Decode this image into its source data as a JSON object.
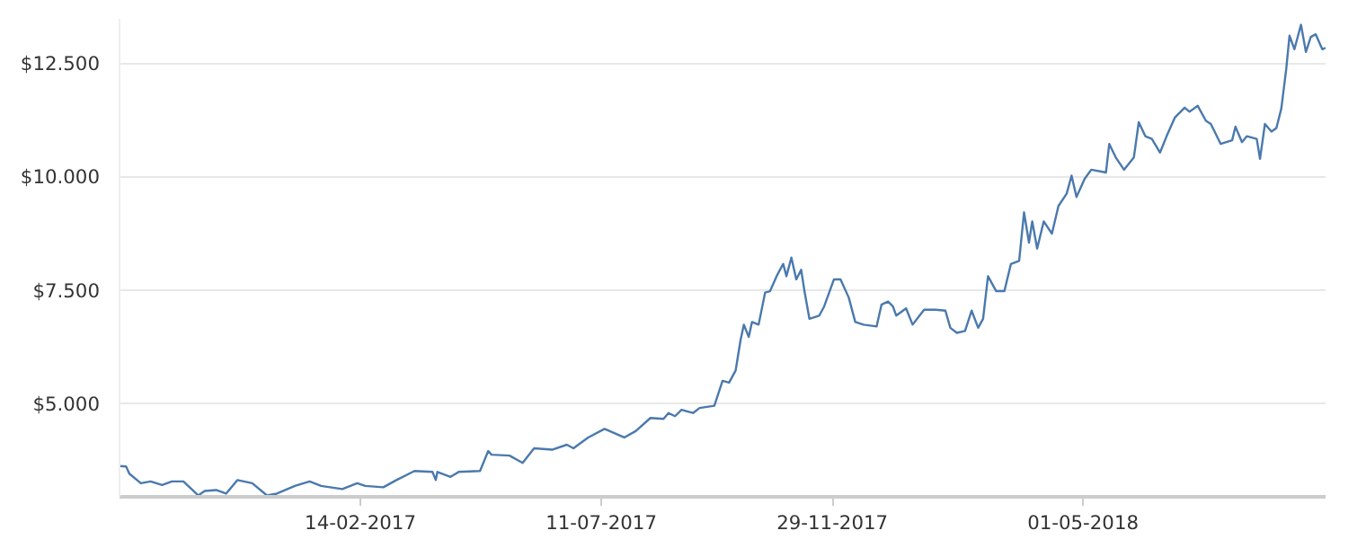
{
  "chart_data": {
    "type": "line",
    "color": "#4a79ad",
    "grid": "y",
    "marker": "none",
    "line_style": "solid",
    "xlim": [
      "2016-09-20",
      "2018-09-26"
    ],
    "ylim": [
      2950,
      13500
    ],
    "xticks": [
      {
        "value": "2017-02-14",
        "label": "14-02-2017"
      },
      {
        "value": "2017-07-11",
        "label": "11-07-2017"
      },
      {
        "value": "2017-11-29",
        "label": "29-11-2017"
      },
      {
        "value": "2018-05-01",
        "label": "01-05-2018"
      }
    ],
    "yticks": [
      {
        "value": 5000,
        "label": "$5.000"
      },
      {
        "value": 7500,
        "label": "$7.500"
      },
      {
        "value": 10000,
        "label": "$10.000"
      },
      {
        "value": 12500,
        "label": "$12.500"
      }
    ],
    "x": [
      "2016-09-20",
      "2016-09-24",
      "2016-09-26",
      "2016-10-03",
      "2016-10-09",
      "2016-10-16",
      "2016-10-22",
      "2016-10-29",
      "2016-11-07",
      "2016-11-11",
      "2016-11-18",
      "2016-11-24",
      "2016-12-01",
      "2016-12-10",
      "2016-12-19",
      "2016-12-25",
      "2017-01-05",
      "2017-01-14",
      "2017-01-21",
      "2017-02-03",
      "2017-02-12",
      "2017-02-17",
      "2017-02-28",
      "2017-03-08",
      "2017-03-19",
      "2017-03-30",
      "2017-04-01",
      "2017-04-02",
      "2017-04-10",
      "2017-04-15",
      "2017-04-28",
      "2017-05-03",
      "2017-05-05",
      "2017-05-16",
      "2017-05-24",
      "2017-05-31",
      "2017-06-11",
      "2017-06-20",
      "2017-06-24",
      "2017-07-03",
      "2017-07-13",
      "2017-07-25",
      "2017-08-01",
      "2017-08-10",
      "2017-08-18",
      "2017-08-21",
      "2017-08-25",
      "2017-08-29",
      "2017-09-05",
      "2017-09-09",
      "2017-09-18",
      "2017-09-23",
      "2017-09-27",
      "2017-10-01",
      "2017-10-04",
      "2017-10-06",
      "2017-10-09",
      "2017-10-11",
      "2017-10-15",
      "2017-10-19",
      "2017-10-22",
      "2017-10-26",
      "2017-10-30",
      "2017-11-01",
      "2017-11-04",
      "2017-11-07",
      "2017-11-10",
      "2017-11-12",
      "2017-11-15",
      "2017-11-21",
      "2017-11-24",
      "2017-11-30",
      "2017-12-04",
      "2017-12-09",
      "2017-12-13",
      "2017-12-18",
      "2017-12-26",
      "2017-12-29",
      "2018-01-02",
      "2018-01-05",
      "2018-01-07",
      "2018-01-13",
      "2018-01-17",
      "2018-01-24",
      "2018-01-31",
      "2018-02-06",
      "2018-02-09",
      "2018-02-13",
      "2018-02-18",
      "2018-02-22",
      "2018-02-26",
      "2018-03-01",
      "2018-03-04",
      "2018-03-09",
      "2018-03-14",
      "2018-03-18",
      "2018-03-23",
      "2018-03-26",
      "2018-03-29",
      "2018-03-31",
      "2018-04-03",
      "2018-04-07",
      "2018-04-12",
      "2018-04-16",
      "2018-04-21",
      "2018-04-24",
      "2018-04-27",
      "2018-05-02",
      "2018-05-06",
      "2018-05-15",
      "2018-05-17",
      "2018-05-21",
      "2018-05-26",
      "2018-06-01",
      "2018-06-04",
      "2018-06-08",
      "2018-06-12",
      "2018-06-17",
      "2018-06-21",
      "2018-06-26",
      "2018-07-02",
      "2018-07-05",
      "2018-07-10",
      "2018-07-15",
      "2018-07-18",
      "2018-07-24",
      "2018-07-31",
      "2018-08-02",
      "2018-08-06",
      "2018-08-09",
      "2018-08-15",
      "2018-08-17",
      "2018-08-20",
      "2018-08-24",
      "2018-08-27",
      "2018-08-30",
      "2018-09-02",
      "2018-09-04",
      "2018-09-07",
      "2018-09-11",
      "2018-09-14",
      "2018-09-17",
      "2018-09-20",
      "2018-09-24",
      "2018-09-26"
    ],
    "values": [
      3630,
      3620,
      3460,
      3250,
      3290,
      3210,
      3290,
      3290,
      2980,
      3080,
      3100,
      3020,
      3320,
      3250,
      2980,
      3020,
      3190,
      3290,
      3190,
      3120,
      3250,
      3190,
      3160,
      3320,
      3520,
      3500,
      3320,
      3500,
      3390,
      3500,
      3520,
      3960,
      3880,
      3860,
      3700,
      4020,
      3990,
      4100,
      4020,
      4260,
      4450,
      4260,
      4400,
      4690,
      4670,
      4800,
      4730,
      4870,
      4800,
      4910,
      4960,
      5510,
      5470,
      5740,
      6410,
      6750,
      6480,
      6810,
      6750,
      7460,
      7490,
      7820,
      8090,
      7820,
      8230,
      7750,
      7960,
      7490,
      6880,
      6950,
      7150,
      7750,
      7750,
      7350,
      6810,
      6750,
      6710,
      7190,
      7260,
      7150,
      6950,
      7110,
      6750,
      7080,
      7080,
      7060,
      6680,
      6570,
      6610,
      7060,
      6680,
      6880,
      7820,
      7490,
      7490,
      8090,
      8160,
      9230,
      8560,
      9030,
      8430,
      9030,
      8760,
      9370,
      9640,
      10040,
      9570,
      9970,
      10170,
      10110,
      10740,
      10440,
      10170,
      10440,
      11220,
      10910,
      10850,
      10550,
      10910,
      11320,
      11540,
      11450,
      11580,
      11250,
      11180,
      10740,
      10820,
      11120,
      10780,
      10910,
      10850,
      10410,
      11180,
      11010,
      11090,
      11520,
      12390,
      13130,
      12830,
      13370,
      12770,
      13100,
      13160,
      12830,
      12860
    ]
  }
}
